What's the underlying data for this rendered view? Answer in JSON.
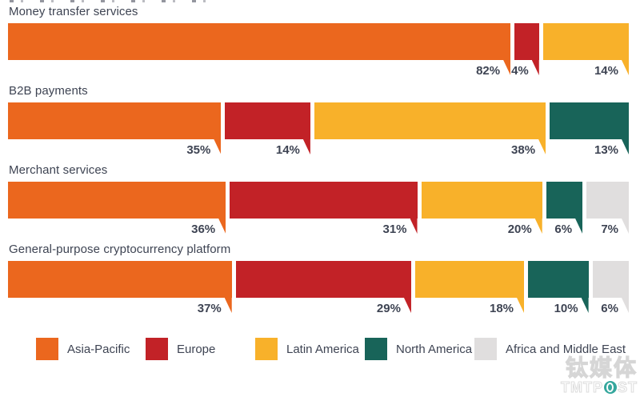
{
  "background": "#FFFFFF",
  "text_color": "#3E4453",
  "chart_data": {
    "type": "bar",
    "orientation": "horizontal",
    "stacked": true,
    "normalized_100": true,
    "unit": "%",
    "title": "",
    "categories": [
      "Money transfer services",
      "B2B payments",
      "Merchant services",
      "General-purpose cryptocurrency platform"
    ],
    "series": [
      {
        "name": "Asia-Pacific",
        "color": "#EB671E",
        "values": [
          82,
          35,
          36,
          37
        ]
      },
      {
        "name": "Europe",
        "color": "#C22227",
        "values": [
          4,
          14,
          31,
          29
        ]
      },
      {
        "name": "Latin America",
        "color": "#F8B12A",
        "values": [
          14,
          38,
          20,
          18
        ]
      },
      {
        "name": "North America",
        "color": "#186459",
        "values": [
          null,
          13,
          6,
          10
        ]
      },
      {
        "name": "Africa and Middle East",
        "color": "#E0DEDE",
        "values": [
          null,
          null,
          7,
          6
        ]
      }
    ],
    "legend_position": "bottom",
    "value_label_style": "percent-below-segment-right-with-pointer-tail",
    "grid": false
  },
  "watermark": {
    "line1": "钛媒体",
    "line2_prefix": "TMTP",
    "line2_suffix": "ST",
    "circle_color": "#35A79D"
  }
}
